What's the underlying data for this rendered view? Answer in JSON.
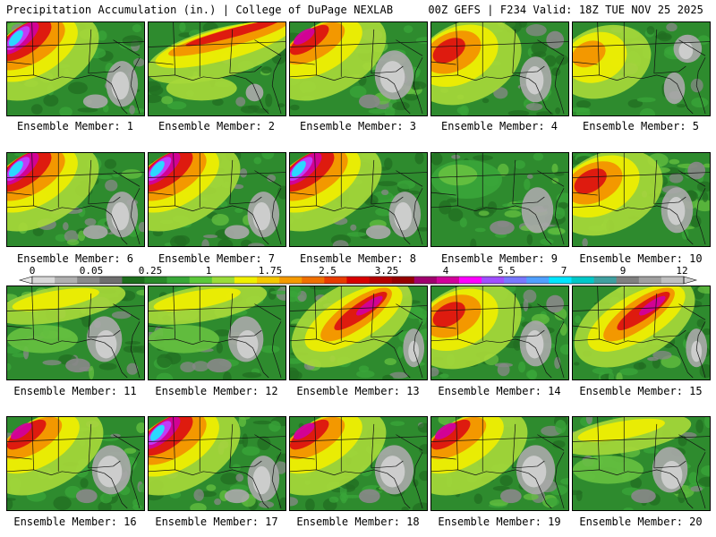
{
  "header": {
    "left": "Precipitation Accumulation (in.) | College of DuPage NEXLAB",
    "right": "00Z GEFS | F234 Valid: 18Z TUE NOV 25 2025"
  },
  "members": [
    {
      "label": "Ensemble Member: 1",
      "pattern": "nw-heavy"
    },
    {
      "label": "Ensemble Member: 2",
      "pattern": "band-north"
    },
    {
      "label": "Ensemble Member: 3",
      "pattern": "nw-moderate"
    },
    {
      "label": "Ensemble Member: 4",
      "pattern": "west-moderate"
    },
    {
      "label": "Ensemble Member: 5",
      "pattern": "west-light"
    },
    {
      "label": "Ensemble Member: 6",
      "pattern": "nw-heavy"
    },
    {
      "label": "Ensemble Member: 7",
      "pattern": "nw-heavy"
    },
    {
      "label": "Ensemble Member: 8",
      "pattern": "nw-heavy"
    },
    {
      "label": "Ensemble Member: 9",
      "pattern": "mostly-dry"
    },
    {
      "label": "Ensemble Member: 10",
      "pattern": "west-moderate"
    },
    {
      "label": "Ensemble Member: 11",
      "pattern": "north-light"
    },
    {
      "label": "Ensemble Member: 12",
      "pattern": "north-light"
    },
    {
      "label": "Ensemble Member: 13",
      "pattern": "diagonal-heavy"
    },
    {
      "label": "Ensemble Member: 14",
      "pattern": "west-moderate"
    },
    {
      "label": "Ensemble Member: 15",
      "pattern": "diagonal-heavy"
    },
    {
      "label": "Ensemble Member: 16",
      "pattern": "nw-moderate"
    },
    {
      "label": "Ensemble Member: 17",
      "pattern": "nw-heavy"
    },
    {
      "label": "Ensemble Member: 18",
      "pattern": "nw-moderate"
    },
    {
      "label": "Ensemble Member: 19",
      "pattern": "nw-moderate"
    },
    {
      "label": "Ensemble Member: 20",
      "pattern": "north-light"
    }
  ],
  "colorbar": {
    "labels": [
      "0",
      "0.05",
      "0.25",
      "1",
      "1.75",
      "2.5",
      "3.25",
      "4",
      "5.5",
      "7",
      "9",
      "12"
    ],
    "colors": [
      "#d8d8d8",
      "#b0b0b0",
      "#8a8a8a",
      "#6e6e6e",
      "#1d6e1d",
      "#2a8a2a",
      "#38a838",
      "#5bc83b",
      "#9adc3a",
      "#f0f000",
      "#f5c800",
      "#f59a00",
      "#f07000",
      "#e83c00",
      "#d80000",
      "#b40000",
      "#960000",
      "#a0006e",
      "#d2009a",
      "#ff00ff",
      "#a050ff",
      "#7878ff",
      "#50a0ff",
      "#00e6ff",
      "#00c8c8",
      "#40a0a0",
      "#808080",
      "#a0a0a0",
      "#c0c0c0"
    ]
  },
  "colors": {
    "land_base": "#2e8b2e",
    "water": "#2f8f2f",
    "border": "#000000"
  }
}
